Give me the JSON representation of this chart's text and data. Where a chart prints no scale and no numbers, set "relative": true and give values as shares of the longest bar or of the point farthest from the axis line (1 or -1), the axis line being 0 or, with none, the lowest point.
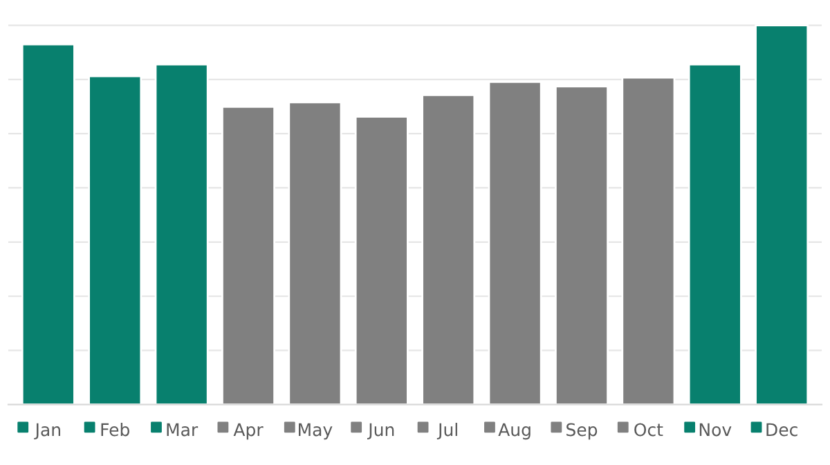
{
  "chart_data": {
    "type": "bar",
    "relative": true,
    "categories": [
      "Jan",
      "Feb",
      "Mar",
      "Apr",
      "May",
      "Jun",
      "Jul",
      "Aug",
      "Sep",
      "Oct",
      "Nov",
      "Dec"
    ],
    "values": [
      0.95,
      0.866,
      0.897,
      0.785,
      0.797,
      0.759,
      0.816,
      0.851,
      0.839,
      0.862,
      0.897,
      1
    ],
    "colors": [
      "#08806e",
      "#08806e",
      "#08806e",
      "#808080",
      "#808080",
      "#808080",
      "#808080",
      "#808080",
      "#808080",
      "#808080",
      "#08806e",
      "#08806e"
    ],
    "grid": "y"
  }
}
